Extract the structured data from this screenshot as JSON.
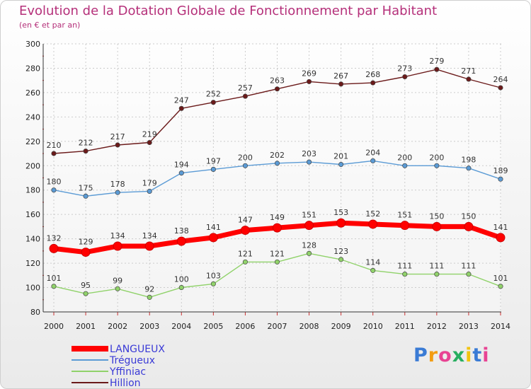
{
  "title": "Evolution de la Dotation Globale de Fonctionnement par Habitant",
  "subtitle": "(en € et par an)",
  "logo": "Proxiti",
  "chart_data": {
    "type": "line",
    "title": "Evolution de la Dotation Globale de Fonctionnement par Habitant",
    "subtitle": "(en € et par an)",
    "x": [
      2000,
      2001,
      2002,
      2003,
      2004,
      2005,
      2006,
      2007,
      2008,
      2009,
      2010,
      2011,
      2012,
      2013,
      2014
    ],
    "ylim": [
      80,
      300
    ],
    "yticks": [
      80,
      100,
      120,
      140,
      160,
      180,
      200,
      220,
      240,
      260,
      280,
      300
    ],
    "grid": true,
    "legend_position": "bottom-left",
    "series": [
      {
        "name": "LANGUEUX",
        "color": "#ff0000",
        "values": [
          132,
          129,
          134,
          134,
          138,
          141,
          147,
          149,
          151,
          153,
          152,
          151,
          150,
          150,
          141
        ]
      },
      {
        "name": "Trégueux",
        "color": "#5b9bd5",
        "values": [
          180,
          175,
          178,
          179,
          194,
          197,
          200,
          202,
          203,
          201,
          204,
          200,
          200,
          198,
          189
        ]
      },
      {
        "name": "Yffiniac",
        "color": "#90d26a",
        "values": [
          101,
          95,
          99,
          92,
          100,
          103,
          121,
          121,
          128,
          123,
          114,
          111,
          111,
          111,
          101
        ]
      },
      {
        "name": "Hillion",
        "color": "#6b1a1a",
        "values": [
          210,
          212,
          217,
          219,
          247,
          252,
          257,
          263,
          269,
          267,
          268,
          273,
          279,
          271,
          264
        ]
      }
    ]
  }
}
